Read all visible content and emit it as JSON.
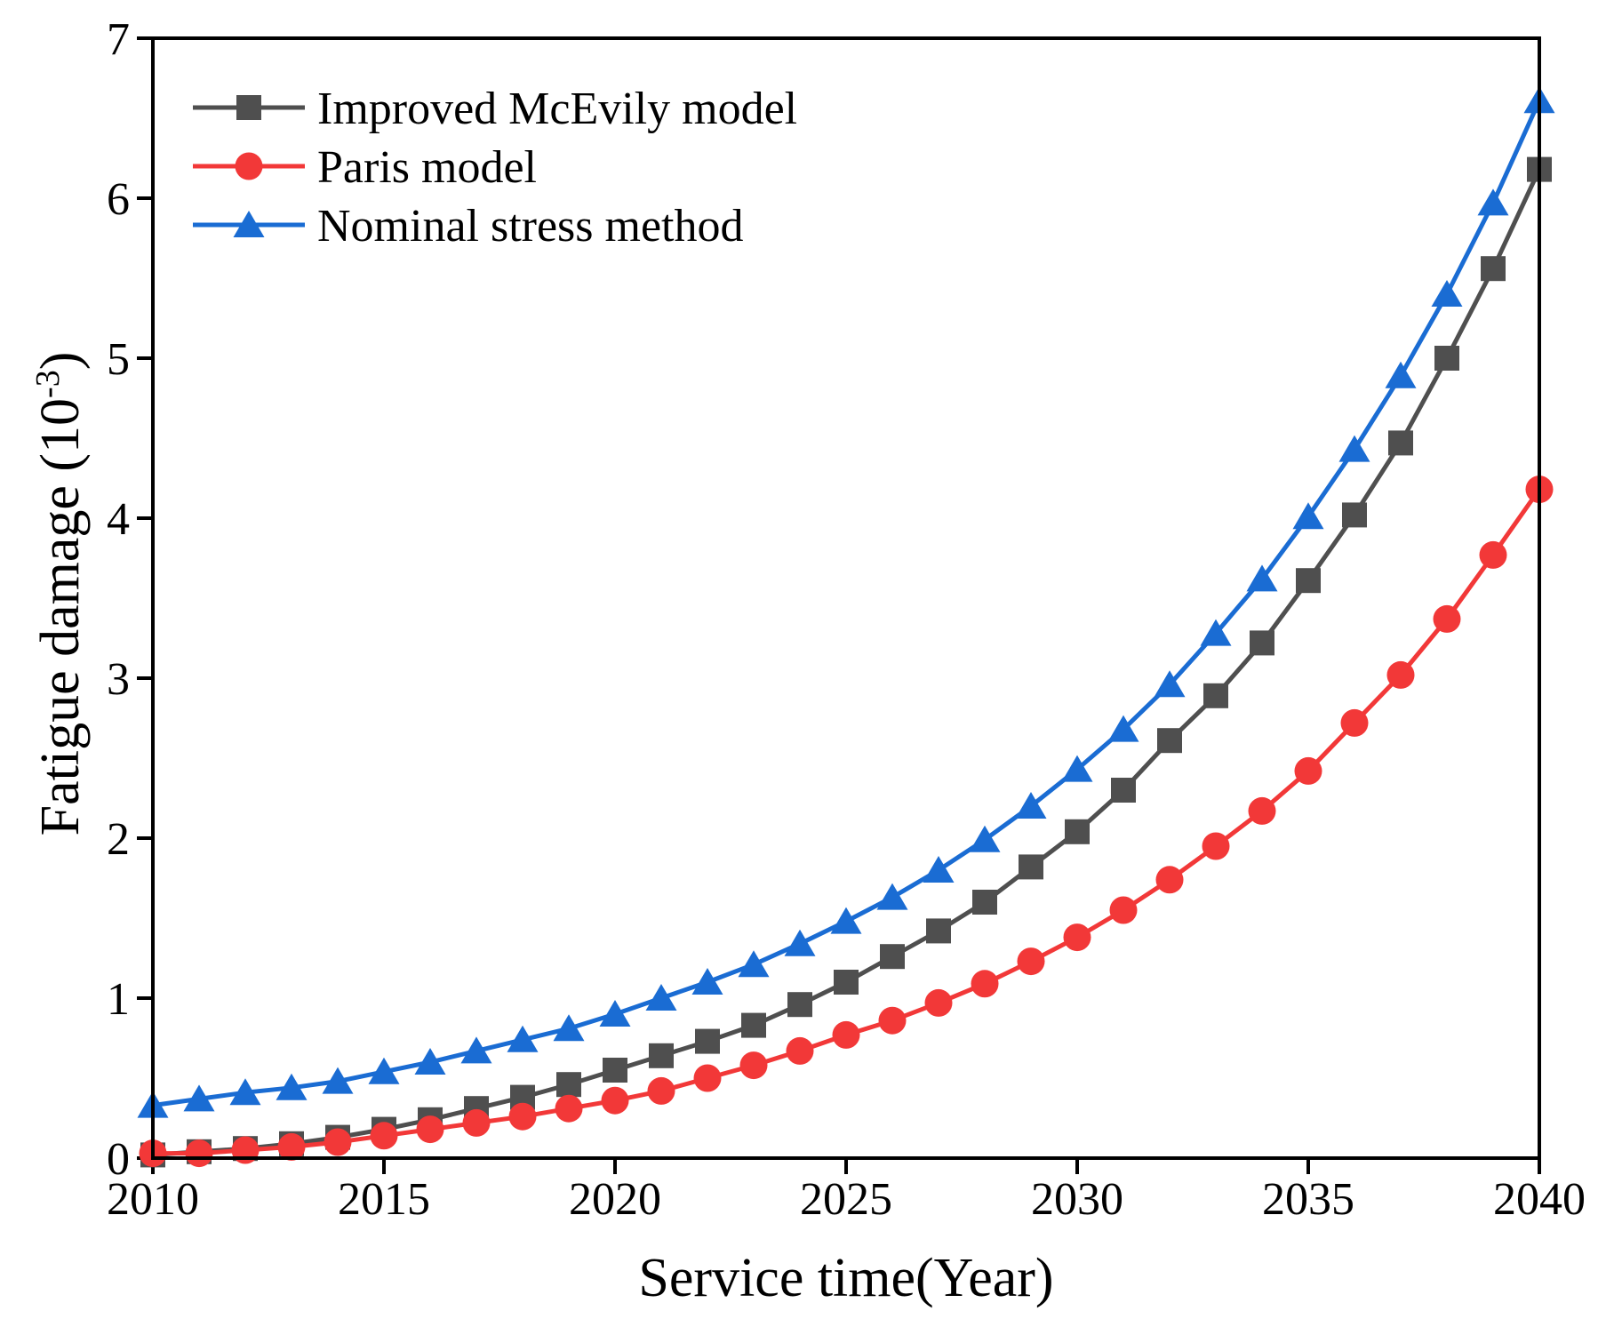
{
  "chart_data": {
    "type": "line",
    "title": "",
    "xlabel": "Service time(Year)",
    "ylabel": "Fatigue damage (10⁻³)",
    "ylabel_parts": {
      "prefix": "Fatigue damage (10",
      "sup": "-3",
      "suffix": ")"
    },
    "xlim": [
      2010,
      2040
    ],
    "ylim": [
      0,
      7
    ],
    "x_ticks": [
      2010,
      2015,
      2020,
      2025,
      2030,
      2035,
      2040
    ],
    "y_ticks": [
      0,
      1,
      2,
      3,
      4,
      5,
      6,
      7
    ],
    "grid": false,
    "legend_position": "top-left",
    "background_color": "#ffffff",
    "axis_color": "#000000",
    "x": [
      2010,
      2011,
      2012,
      2013,
      2014,
      2015,
      2016,
      2017,
      2018,
      2019,
      2020,
      2021,
      2022,
      2023,
      2024,
      2025,
      2026,
      2027,
      2028,
      2029,
      2030,
      2031,
      2032,
      2033,
      2034,
      2035,
      2036,
      2037,
      2038,
      2039,
      2040
    ],
    "series": [
      {
        "name": "Improved McEvily model",
        "marker": "square",
        "color": "#4f4f4f",
        "values": [
          0.02,
          0.04,
          0.06,
          0.09,
          0.13,
          0.18,
          0.24,
          0.31,
          0.38,
          0.46,
          0.55,
          0.64,
          0.73,
          0.83,
          0.96,
          1.1,
          1.26,
          1.42,
          1.6,
          1.82,
          2.04,
          2.3,
          2.61,
          2.89,
          3.22,
          3.61,
          4.02,
          4.47,
          5.0,
          5.56,
          6.18
        ]
      },
      {
        "name": "Paris model",
        "marker": "circle",
        "color": "#f23838",
        "values": [
          0.03,
          0.03,
          0.05,
          0.07,
          0.1,
          0.14,
          0.18,
          0.22,
          0.26,
          0.31,
          0.36,
          0.42,
          0.5,
          0.58,
          0.67,
          0.77,
          0.86,
          0.97,
          1.09,
          1.23,
          1.38,
          1.55,
          1.74,
          1.95,
          2.17,
          2.42,
          2.72,
          3.02,
          3.37,
          3.77,
          4.18
        ]
      },
      {
        "name": "Nominal stress method",
        "marker": "triangle",
        "color": "#1a6cd3",
        "values": [
          0.33,
          0.37,
          0.41,
          0.44,
          0.48,
          0.54,
          0.6,
          0.67,
          0.74,
          0.81,
          0.9,
          1.0,
          1.1,
          1.21,
          1.34,
          1.48,
          1.63,
          1.8,
          1.99,
          2.2,
          2.43,
          2.68,
          2.96,
          3.28,
          3.62,
          4.01,
          4.43,
          4.89,
          5.4,
          5.97,
          6.61
        ]
      }
    ]
  }
}
